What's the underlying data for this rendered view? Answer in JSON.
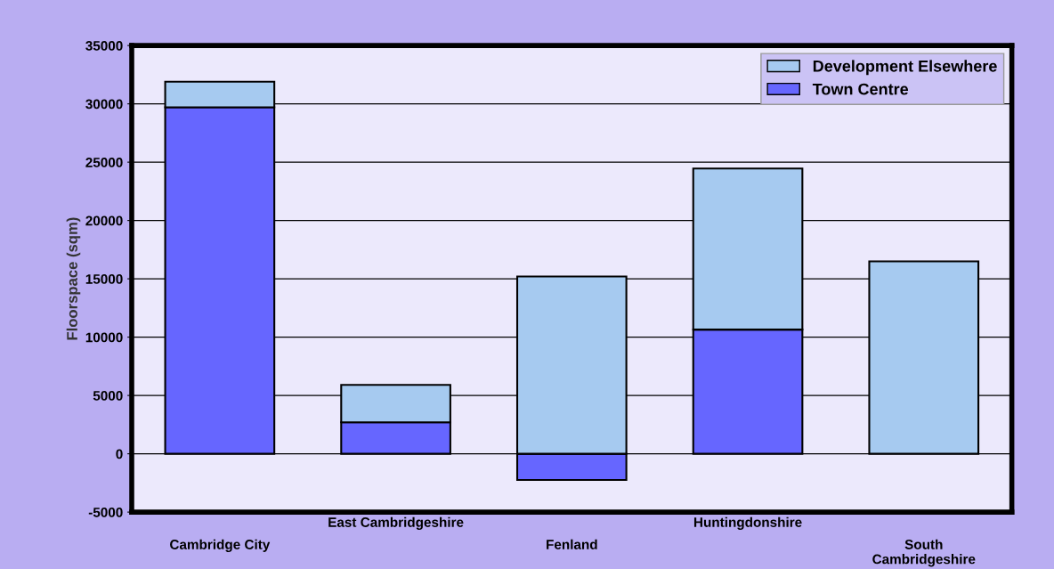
{
  "chart_data": {
    "type": "bar",
    "stacked": true,
    "ylabel": "Floorspace (sqm)",
    "categories": [
      "Cambridge City",
      "East Cambridgeshire",
      "Fenland",
      "Huntingdonshire",
      "South\nCambridgeshire"
    ],
    "series": [
      {
        "name": "Town Centre",
        "color": "#6666ff",
        "values": [
          29700,
          2700,
          -2250,
          10650,
          0
        ]
      },
      {
        "name": "Development Elsewhere",
        "color": "#a6caf0",
        "values": [
          2200,
          3200,
          15200,
          13800,
          16500
        ]
      }
    ],
    "ylim": [
      -5000,
      35000
    ],
    "yticks": [
      -5000,
      0,
      5000,
      10000,
      15000,
      20000,
      25000,
      30000,
      35000
    ],
    "grid": "y",
    "legend": "top right"
  }
}
